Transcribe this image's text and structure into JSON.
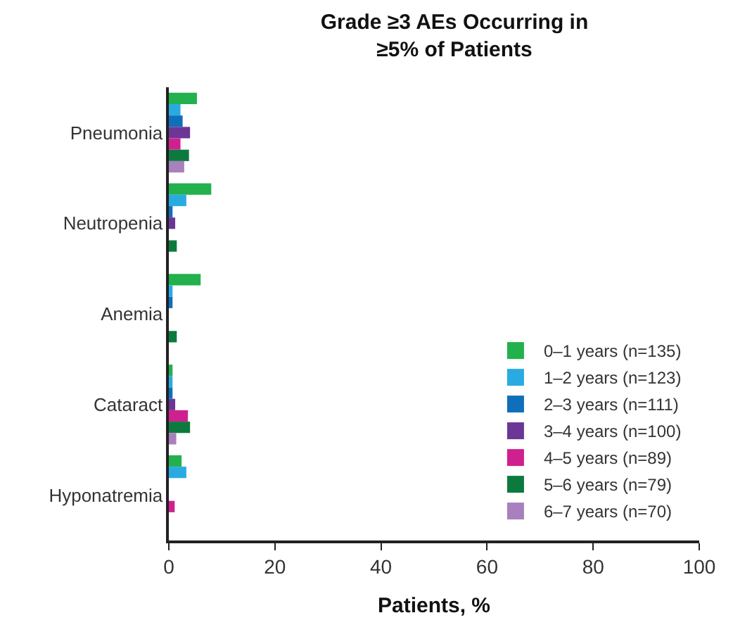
{
  "chart_data": {
    "type": "bar",
    "orientation": "horizontal",
    "title": "Grade ≥3 AEs Occurring in\n≥5% of Patients",
    "xlabel": "Patients, %",
    "categories": [
      "Pneumonia",
      "Neutropenia",
      "Anemia",
      "Cataract",
      "Hyponatremia"
    ],
    "series": [
      {
        "name": "0–1 years (n=135)",
        "color": "#22b14c",
        "values": [
          5.3,
          8.0,
          6.0,
          0.7,
          2.4
        ]
      },
      {
        "name": "1–2 years (n=123)",
        "color": "#29abe2",
        "values": [
          2.2,
          3.3,
          0.7,
          0.7,
          3.3
        ]
      },
      {
        "name": "2–3 years (n=111)",
        "color": "#0f6fba",
        "values": [
          2.6,
          0.7,
          0.7,
          0.7,
          null
        ]
      },
      {
        "name": "3–4 years (n=100)",
        "color": "#6b3696",
        "values": [
          4.0,
          1.2,
          null,
          1.2,
          null
        ]
      },
      {
        "name": "4–5 years (n=89)",
        "color": "#d02090",
        "values": [
          2.2,
          null,
          null,
          3.6,
          1.1
        ]
      },
      {
        "name": "5–6 years (n=79)",
        "color": "#0c7a3e",
        "values": [
          3.8,
          1.5,
          1.5,
          4.0,
          null
        ]
      },
      {
        "name": "6–7 years (n=70)",
        "color": "#a880bd",
        "values": [
          2.9,
          null,
          null,
          1.4,
          null
        ]
      }
    ],
    "xlim": [
      0,
      100
    ],
    "xticks": [
      0,
      20,
      40,
      60,
      80,
      100
    ],
    "legend": "bottom right"
  }
}
